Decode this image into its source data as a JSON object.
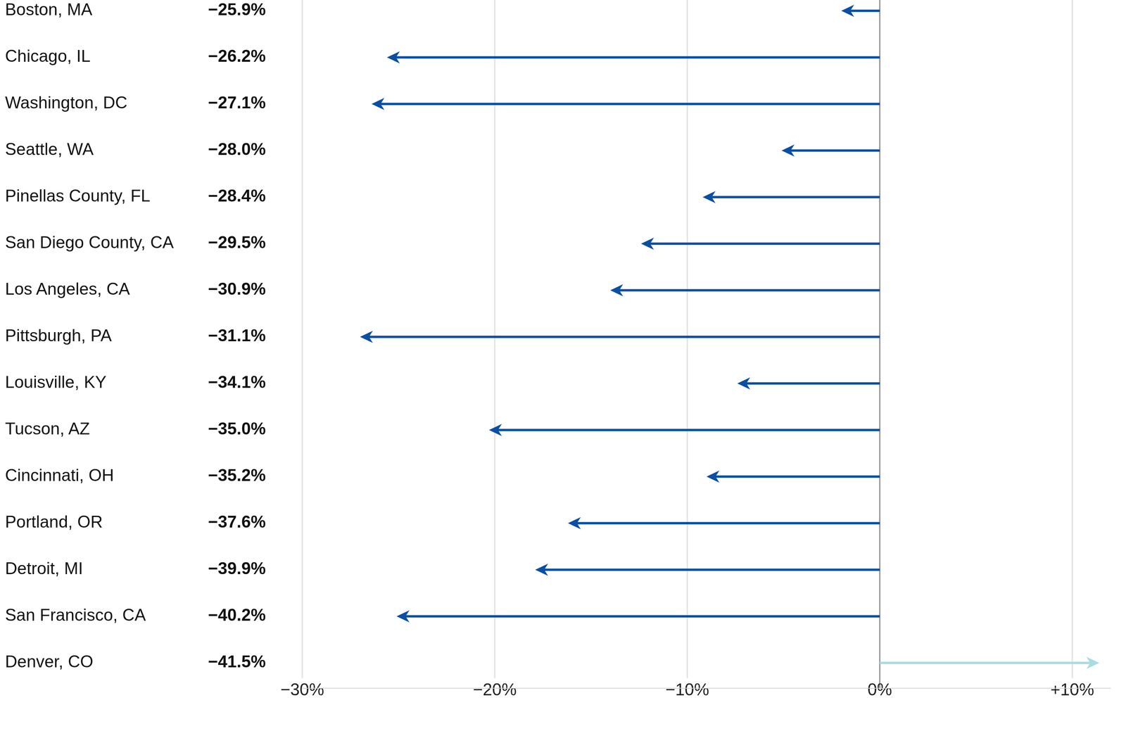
{
  "chart_data": {
    "type": "arrow",
    "orientation": "horizontal",
    "categories": [
      "Boston, MA",
      "Chicago, IL",
      "Washington, DC",
      "Seattle, WA",
      "Pinellas County, FL",
      "San Diego County, CA",
      "Los Angeles, CA",
      "Pittsburgh, PA",
      "Louisville, KY",
      "Tucson, AZ",
      "Cincinnati, OH",
      "Portland, OR",
      "Detroit, MI",
      "San Francisco, CA",
      "Denver, CO"
    ],
    "column_labels": [
      "−25.9%",
      "−26.2%",
      "−27.1%",
      "−28.0%",
      "−28.4%",
      "−29.5%",
      "−30.9%",
      "−31.1%",
      "−34.1%",
      "−35.0%",
      "−35.2%",
      "−37.6%",
      "−39.9%",
      "−40.2%",
      "−41.5%"
    ],
    "values": [
      -2.0,
      -25.6,
      -26.4,
      -5.1,
      -9.2,
      -12.4,
      -14.0,
      -27.0,
      -7.4,
      -20.3,
      -9.0,
      -16.2,
      -17.9,
      -25.1,
      11.4
    ],
    "colors": [
      "#0a4fa3",
      "#0a4fa3",
      "#0a4fa3",
      "#0a4fa3",
      "#0a4fa3",
      "#0a4fa3",
      "#0a4fa3",
      "#0a4fa3",
      "#0a4fa3",
      "#0a4fa3",
      "#0a4fa3",
      "#0a4fa3",
      "#0a4fa3",
      "#0a4fa3",
      "#a6dde2"
    ],
    "xlim": [
      -30,
      12
    ],
    "xticks": [
      {
        "value": -30,
        "label": "−30%"
      },
      {
        "value": -20,
        "label": "−20%"
      },
      {
        "value": -10,
        "label": "−10%"
      },
      {
        "value": 0,
        "label": "0%"
      },
      {
        "value": 10,
        "label": "+10%"
      }
    ],
    "grid": true
  }
}
